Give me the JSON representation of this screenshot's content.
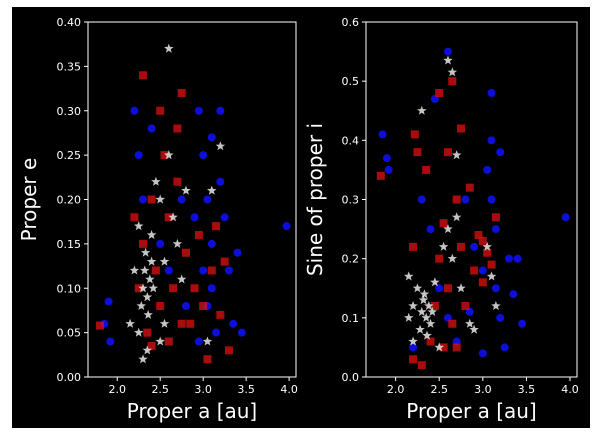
{
  "chart_data": [
    {
      "type": "scatter",
      "x_label": "Proper a [au]",
      "y_label": "Proper e",
      "xlim": [
        1.66,
        4.08
      ],
      "ylim": [
        0,
        0.4
      ],
      "xticks": [
        {
          "value": 2,
          "label": "2.0"
        },
        2.5,
        {
          "value": 3,
          "label": "3.0"
        },
        3.5,
        {
          "value": 4,
          "label": "4.0"
        }
      ],
      "yticks": [
        {
          "value": 0,
          "label": "0.00"
        },
        0.05,
        {
          "value": 0.1,
          "label": "0.10"
        },
        0.15,
        {
          "value": 0.2,
          "label": "0.20"
        },
        0.25,
        {
          "value": 0.3,
          "label": "0.30"
        },
        0.35,
        {
          "value": 0.4,
          "label": "0.40"
        }
      ],
      "series": [
        {
          "color": "#1010ff",
          "marker": "circle",
          "x": [
            1.9,
            1.85,
            1.92,
            2.2,
            2.25,
            2.3,
            2.4,
            2.5,
            2.6,
            2.75,
            2.8,
            2.9,
            2.95,
            3.0,
            3.05,
            3.1,
            3.1,
            3.15,
            3.2,
            3.0,
            3.05,
            3.2,
            3.25,
            3.3,
            3.35,
            3.45,
            3.4,
            3.1,
            3.97,
            2.95
          ],
          "values": [
            0.085,
            0.06,
            0.04,
            0.3,
            0.25,
            0.2,
            0.28,
            0.15,
            0.12,
            0.2,
            0.08,
            0.18,
            0.3,
            0.25,
            0.2,
            0.15,
            0.1,
            0.05,
            0.22,
            0.12,
            0.08,
            0.3,
            0.18,
            0.12,
            0.06,
            0.05,
            0.14,
            0.27,
            0.17,
            0.04
          ]
        },
        {
          "color": "#e01010",
          "marker": "square",
          "x": [
            2.3,
            2.25,
            2.3,
            2.4,
            2.45,
            2.5,
            2.55,
            2.6,
            2.65,
            2.7,
            2.75,
            2.8,
            2.85,
            2.9,
            2.95,
            3.0,
            3.05,
            3.1,
            3.15,
            3.2,
            3.25,
            3.3,
            1.8,
            2.35,
            2.6,
            2.7,
            2.5,
            2.4,
            2.75,
            2.2
          ],
          "values": [
            0.34,
            0.1,
            0.15,
            0.2,
            0.12,
            0.08,
            0.25,
            0.18,
            0.1,
            0.22,
            0.32,
            0.14,
            0.06,
            0.1,
            0.16,
            0.08,
            0.02,
            0.12,
            0.17,
            0.07,
            0.13,
            0.03,
            0.058,
            0.05,
            0.04,
            0.28,
            0.3,
            0.035,
            0.06,
            0.18
          ]
        },
        {
          "color": "#e8e8e8",
          "marker": "star",
          "x": [
            2.6,
            2.3,
            2.32,
            2.35,
            2.38,
            2.4,
            2.28,
            2.33,
            2.42,
            2.36,
            2.25,
            2.5,
            2.6,
            2.7,
            2.55,
            2.45,
            2.2,
            2.25,
            2.15,
            2.3,
            2.5,
            2.65,
            2.8,
            3.1,
            3.2,
            2.4,
            2.35,
            2.55,
            3.05,
            2.75
          ],
          "values": [
            0.37,
            0.1,
            0.12,
            0.09,
            0.11,
            0.13,
            0.08,
            0.14,
            0.1,
            0.07,
            0.17,
            0.2,
            0.25,
            0.15,
            0.13,
            0.22,
            0.12,
            0.05,
            0.06,
            0.02,
            0.04,
            0.18,
            0.21,
            0.21,
            0.26,
            0.16,
            0.03,
            0.06,
            0.04,
            0.11
          ]
        }
      ]
    },
    {
      "type": "scatter",
      "x_label": "Proper a [au]",
      "y_label": "Sine of proper i",
      "xlim": [
        1.66,
        4.08
      ],
      "ylim": [
        0,
        0.6
      ],
      "xticks": [
        {
          "value": 2,
          "label": "2.0"
        },
        2.5,
        {
          "value": 3,
          "label": "3.0"
        },
        3.5,
        {
          "value": 4,
          "label": "4.0"
        }
      ],
      "yticks": [
        {
          "value": 0,
          "label": "0.0"
        },
        0.1,
        0.2,
        0.3,
        0.4,
        0.5,
        0.6
      ],
      "series": [
        {
          "color": "#1010ff",
          "marker": "circle",
          "x": [
            1.85,
            1.9,
            1.92,
            2.6,
            2.3,
            2.4,
            2.5,
            2.2,
            2.6,
            2.7,
            2.8,
            2.9,
            3.0,
            3.05,
            3.1,
            3.1,
            3.15,
            3.2,
            3.15,
            3.2,
            3.25,
            3.3,
            3.35,
            3.4,
            3.45,
            3.95,
            3.1,
            2.85,
            2.45,
            3.0
          ],
          "values": [
            0.41,
            0.37,
            0.35,
            0.55,
            0.3,
            0.25,
            0.15,
            0.05,
            0.1,
            0.06,
            0.3,
            0.22,
            0.18,
            0.35,
            0.4,
            0.3,
            0.25,
            0.38,
            0.15,
            0.1,
            0.05,
            0.2,
            0.14,
            0.2,
            0.09,
            0.27,
            0.48,
            0.11,
            0.47,
            0.04
          ]
        },
        {
          "color": "#e01010",
          "marker": "square",
          "x": [
            2.65,
            2.22,
            1.83,
            2.25,
            2.75,
            2.5,
            2.55,
            2.6,
            2.65,
            2.7,
            2.75,
            2.8,
            2.85,
            2.9,
            2.95,
            3.0,
            3.05,
            2.45,
            2.4,
            2.3,
            2.2,
            2.55,
            2.6,
            3.0,
            3.1,
            3.15,
            2.5,
            2.35,
            2.2,
            2.7
          ],
          "values": [
            0.5,
            0.41,
            0.34,
            0.38,
            0.42,
            0.2,
            0.26,
            0.15,
            0.09,
            0.3,
            0.22,
            0.12,
            0.32,
            0.18,
            0.24,
            0.16,
            0.21,
            0.12,
            0.06,
            0.02,
            0.03,
            0.05,
            0.38,
            0.23,
            0.19,
            0.27,
            0.48,
            0.35,
            0.22,
            0.05
          ]
        },
        {
          "color": "#e8e8e8",
          "marker": "star",
          "x": [
            2.6,
            2.65,
            2.7,
            2.3,
            2.32,
            2.35,
            2.38,
            2.4,
            2.28,
            2.33,
            2.42,
            2.36,
            2.25,
            2.55,
            2.6,
            2.65,
            2.7,
            2.45,
            2.2,
            2.2,
            2.15,
            2.5,
            2.75,
            3.05,
            3.1,
            2.3,
            2.15,
            2.9,
            3.15,
            2.85
          ],
          "values": [
            0.535,
            0.515,
            0.375,
            0.11,
            0.13,
            0.1,
            0.12,
            0.09,
            0.08,
            0.14,
            0.11,
            0.07,
            0.15,
            0.22,
            0.25,
            0.2,
            0.27,
            0.16,
            0.12,
            0.06,
            0.17,
            0.05,
            0.15,
            0.22,
            0.17,
            0.45,
            0.1,
            0.08,
            0.12,
            0.09
          ]
        }
      ]
    }
  ]
}
